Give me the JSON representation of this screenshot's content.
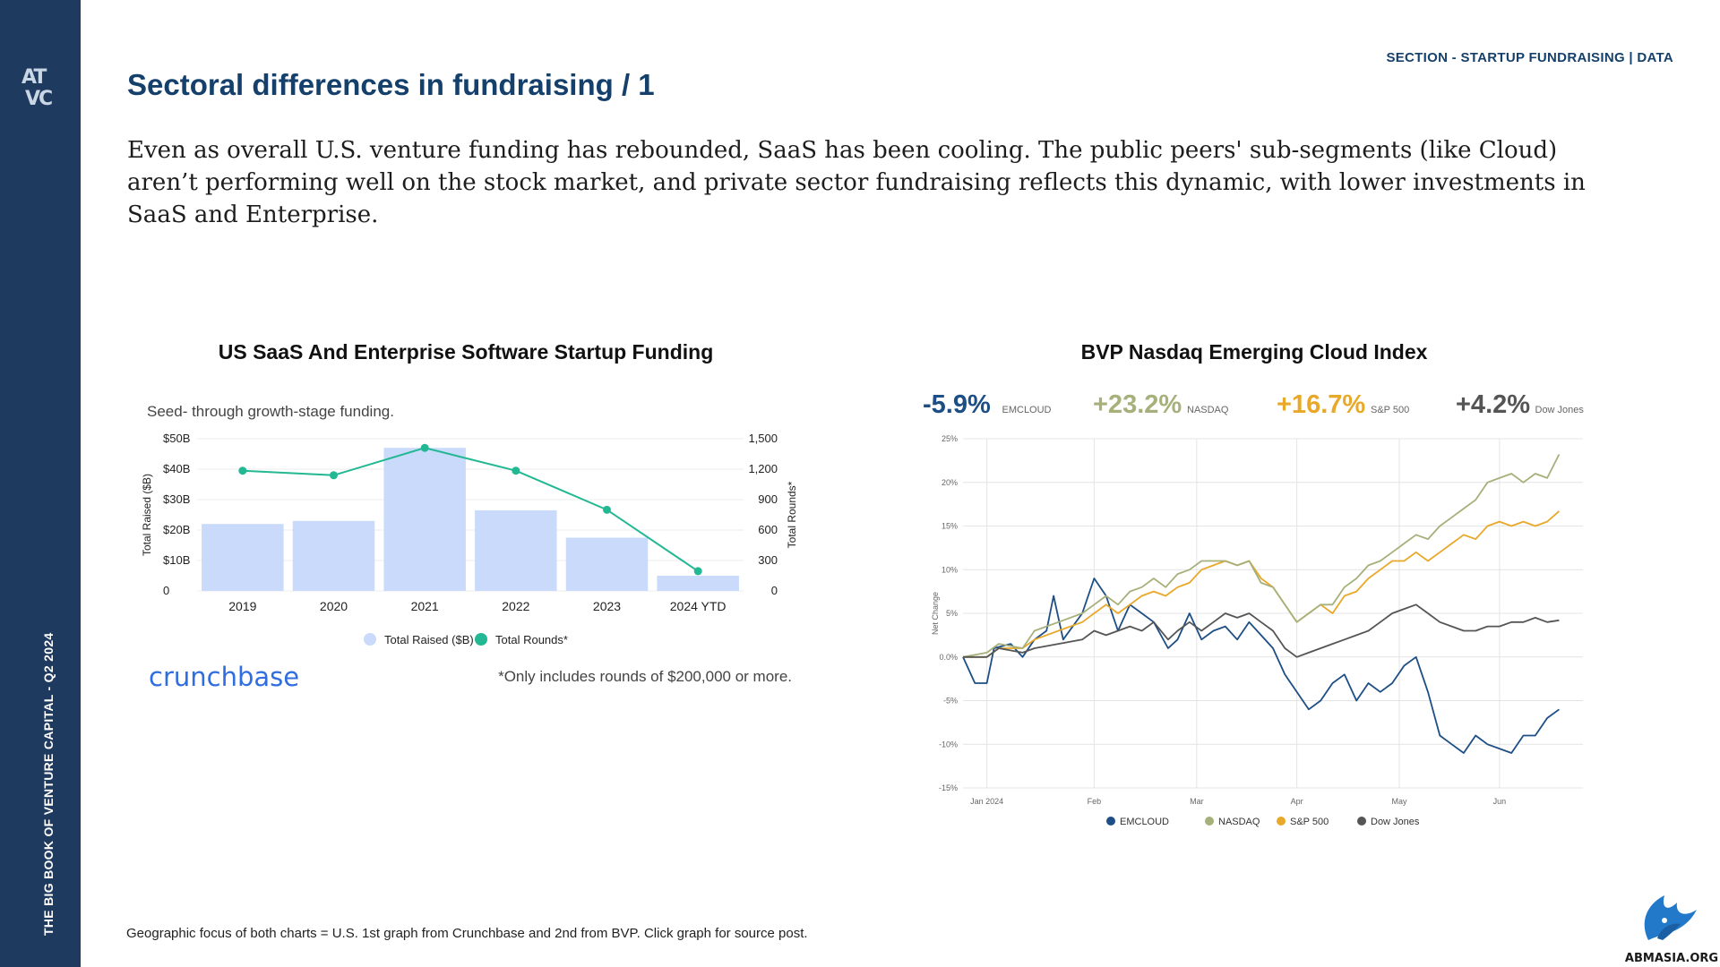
{
  "sidebar": {
    "logo_line1": "AT",
    "logo_line2": "VC",
    "vertical_text": "THE BIG BOOK OF VENTURE CAPITAL - Q2 2024",
    "logo_icon": "atvc-logo-icon"
  },
  "header": {
    "section_label": "SECTION - STARTUP FUNDRAISING | DATA",
    "title": "Sectoral differences in fundraising / 1"
  },
  "intro": "Even as overall U.S. venture funding has rebounded, SaaS has been cooling. The public peers' sub-segments (like Cloud) aren’t performing well on the stock market, and private sector fundraising reflects this dynamic, with lower investments in SaaS and Enterprise.",
  "footer": "Geographic focus of both charts = U.S. 1st graph from Crunchbase and 2nd from BVP. Click graph for source post.",
  "watermark": {
    "text": "ABMASIA.ORG",
    "icon": "eagle-icon"
  },
  "chart_data": [
    {
      "type": "bar",
      "title": "US SaaS And Enterprise Software Startup Funding",
      "subtitle": "Seed- through growth-stage funding.",
      "categories": [
        "2019",
        "2020",
        "2021",
        "2022",
        "2023",
        "2024 YTD"
      ],
      "series": [
        {
          "name": "Total Raised ($B)",
          "type": "bar",
          "axis": "left",
          "values": [
            22,
            23,
            47,
            26.5,
            17.5,
            5
          ],
          "color": "#c9dafb"
        },
        {
          "name": "Total Rounds*",
          "type": "line",
          "axis": "right",
          "values": [
            1185,
            1140,
            1410,
            1185,
            800,
            195
          ],
          "color": "#22b893"
        }
      ],
      "ylabel": "Total Raised ($B)",
      "ylabel_right": "Total Rounds*",
      "ylim": [
        0,
        50
      ],
      "ylim_right": [
        0,
        1500
      ],
      "yticks": [
        "0",
        "$10B",
        "$20B",
        "$30B",
        "$40B",
        "$50B"
      ],
      "yticks_right": [
        "0",
        "300",
        "600",
        "900",
        "1,200",
        "1,500"
      ],
      "legend_position": "bottom",
      "source_brand": "crunchbase",
      "note": "*Only includes rounds of $200,000 or more."
    },
    {
      "type": "line",
      "title": "BVP Nasdaq Emerging Cloud Index",
      "headline": [
        {
          "value": "-5.9%",
          "label": "EMCLOUD",
          "color": "#1d4e85"
        },
        {
          "value": "+23.2%",
          "label": "NASDAQ",
          "color": "#a6b07a"
        },
        {
          "value": "+16.7%",
          "label": "S&P 500",
          "color": "#e8a82a"
        },
        {
          "value": "+4.2%",
          "label": "Dow Jones",
          "color": "#555555"
        }
      ],
      "ylabel": "Net Change",
      "ylim": [
        -15,
        25
      ],
      "yticks": [
        "-15%",
        "-10%",
        "-5%",
        "0.0%",
        "5%",
        "10%",
        "15%",
        "20%",
        "25%"
      ],
      "x_range": [
        0,
        26
      ],
      "x_ticks": [
        {
          "label": "Jan 2024",
          "x": 1
        },
        {
          "label": "Feb",
          "x": 5.5
        },
        {
          "label": "Mar",
          "x": 9.8
        },
        {
          "label": "Apr",
          "x": 14
        },
        {
          "label": "May",
          "x": 18.3
        },
        {
          "label": "Jun",
          "x": 22.5
        }
      ],
      "legend_position": "bottom",
      "series": [
        {
          "name": "EMCLOUD",
          "color": "#1d4e85",
          "points": [
            [
              0,
              0
            ],
            [
              0.5,
              -3
            ],
            [
              1,
              -3
            ],
            [
              1.3,
              1
            ],
            [
              2,
              1.5
            ],
            [
              2.5,
              0
            ],
            [
              3,
              2
            ],
            [
              3.5,
              3
            ],
            [
              3.8,
              7
            ],
            [
              4.2,
              2
            ],
            [
              5,
              5
            ],
            [
              5.5,
              9
            ],
            [
              6,
              7
            ],
            [
              6.5,
              3
            ],
            [
              7,
              6
            ],
            [
              7.5,
              5
            ],
            [
              8,
              4
            ],
            [
              8.6,
              1
            ],
            [
              9,
              2
            ],
            [
              9.5,
              5
            ],
            [
              10,
              2
            ],
            [
              10.5,
              3
            ],
            [
              11,
              3.5
            ],
            [
              11.5,
              2
            ],
            [
              12,
              4
            ],
            [
              12.5,
              2.5
            ],
            [
              13,
              1
            ],
            [
              13.5,
              -2
            ],
            [
              14,
              -4
            ],
            [
              14.5,
              -6
            ],
            [
              15,
              -5
            ],
            [
              15.5,
              -3
            ],
            [
              16,
              -2
            ],
            [
              16.5,
              -5
            ],
            [
              17,
              -3
            ],
            [
              17.5,
              -4
            ],
            [
              18,
              -3
            ],
            [
              18.5,
              -1
            ],
            [
              19,
              0
            ],
            [
              19.5,
              -4
            ],
            [
              20,
              -9
            ],
            [
              20.5,
              -10
            ],
            [
              21,
              -11
            ],
            [
              21.5,
              -9
            ],
            [
              22,
              -10
            ],
            [
              22.5,
              -10.5
            ],
            [
              23,
              -11
            ],
            [
              23.5,
              -9
            ],
            [
              24,
              -9
            ],
            [
              24.5,
              -7
            ],
            [
              25,
              -6
            ]
          ]
        },
        {
          "name": "S&P 500",
          "color": "#e8a82a",
          "points": [
            [
              0,
              0
            ],
            [
              1,
              0
            ],
            [
              1.5,
              1
            ],
            [
              2.5,
              1
            ],
            [
              3,
              2
            ],
            [
              4,
              3
            ],
            [
              5,
              4
            ],
            [
              5.5,
              5
            ],
            [
              6,
              6
            ],
            [
              6.5,
              5
            ],
            [
              7,
              6
            ],
            [
              7.5,
              7
            ],
            [
              8,
              7.5
            ],
            [
              8.5,
              7
            ],
            [
              9,
              8
            ],
            [
              9.5,
              8.5
            ],
            [
              10,
              10
            ],
            [
              10.5,
              10.5
            ],
            [
              11,
              11
            ],
            [
              11.5,
              10.5
            ],
            [
              12,
              11
            ],
            [
              12.5,
              9
            ],
            [
              13,
              8
            ],
            [
              13.5,
              6
            ],
            [
              14,
              4
            ],
            [
              14.5,
              5
            ],
            [
              15,
              6
            ],
            [
              15.5,
              5
            ],
            [
              16,
              7
            ],
            [
              16.5,
              7.5
            ],
            [
              17,
              9
            ],
            [
              17.5,
              10
            ],
            [
              18,
              11
            ],
            [
              18.5,
              11
            ],
            [
              19,
              12
            ],
            [
              19.5,
              11
            ],
            [
              20,
              12
            ],
            [
              20.5,
              13
            ],
            [
              21,
              14
            ],
            [
              21.5,
              13.5
            ],
            [
              22,
              15
            ],
            [
              22.5,
              15.5
            ],
            [
              23,
              15
            ],
            [
              23.5,
              15.5
            ],
            [
              24,
              15
            ],
            [
              24.5,
              15.5
            ],
            [
              25,
              16.7
            ]
          ]
        },
        {
          "name": "NASDAQ",
          "color": "#a6b07a",
          "points": [
            [
              0,
              0
            ],
            [
              1,
              0.5
            ],
            [
              1.5,
              1.5
            ],
            [
              2.5,
              1
            ],
            [
              3,
              3
            ],
            [
              4,
              4
            ],
            [
              5,
              5
            ],
            [
              5.5,
              6
            ],
            [
              6,
              7
            ],
            [
              6.5,
              6
            ],
            [
              7,
              7.5
            ],
            [
              7.5,
              8
            ],
            [
              8,
              9
            ],
            [
              8.5,
              8
            ],
            [
              9,
              9.5
            ],
            [
              9.5,
              10
            ],
            [
              10,
              11
            ],
            [
              10.5,
              11
            ],
            [
              11,
              11
            ],
            [
              11.5,
              10.5
            ],
            [
              12,
              11
            ],
            [
              12.5,
              8.5
            ],
            [
              13,
              8
            ],
            [
              13.5,
              6
            ],
            [
              14,
              4
            ],
            [
              14.5,
              5
            ],
            [
              15,
              6
            ],
            [
              15.5,
              6
            ],
            [
              16,
              8
            ],
            [
              16.5,
              9
            ],
            [
              17,
              10.5
            ],
            [
              17.5,
              11
            ],
            [
              18,
              12
            ],
            [
              18.5,
              13
            ],
            [
              19,
              14
            ],
            [
              19.5,
              13.5
            ],
            [
              20,
              15
            ],
            [
              20.5,
              16
            ],
            [
              21,
              17
            ],
            [
              21.5,
              18
            ],
            [
              22,
              20
            ],
            [
              22.5,
              20.5
            ],
            [
              23,
              21
            ],
            [
              23.5,
              20
            ],
            [
              24,
              21
            ],
            [
              24.5,
              20.5
            ],
            [
              25,
              23.2
            ]
          ]
        },
        {
          "name": "Dow Jones",
          "color": "#555555",
          "points": [
            [
              0,
              0
            ],
            [
              1,
              0
            ],
            [
              1.5,
              1
            ],
            [
              2.5,
              0.5
            ],
            [
              3,
              1
            ],
            [
              4,
              1.5
            ],
            [
              5,
              2
            ],
            [
              5.5,
              3
            ],
            [
              6,
              2.5
            ],
            [
              6.5,
              3
            ],
            [
              7,
              3.5
            ],
            [
              7.5,
              3
            ],
            [
              8,
              4
            ],
            [
              8.6,
              2
            ],
            [
              9,
              3
            ],
            [
              9.5,
              4
            ],
            [
              10,
              3
            ],
            [
              10.5,
              4
            ],
            [
              11,
              5
            ],
            [
              11.5,
              4.5
            ],
            [
              12,
              5
            ],
            [
              12.5,
              4
            ],
            [
              13,
              3
            ],
            [
              13.5,
              1
            ],
            [
              14,
              0
            ],
            [
              14.5,
              0.5
            ],
            [
              15,
              1
            ],
            [
              15.5,
              1.5
            ],
            [
              16,
              2
            ],
            [
              16.5,
              2.5
            ],
            [
              17,
              3
            ],
            [
              17.5,
              4
            ],
            [
              18,
              5
            ],
            [
              18.5,
              5.5
            ],
            [
              19,
              6
            ],
            [
              19.5,
              5
            ],
            [
              20,
              4
            ],
            [
              20.5,
              3.5
            ],
            [
              21,
              3
            ],
            [
              21.5,
              3
            ],
            [
              22,
              3.5
            ],
            [
              22.5,
              3.5
            ],
            [
              23,
              4
            ],
            [
              23.5,
              4
            ],
            [
              24,
              4.5
            ],
            [
              24.5,
              4
            ],
            [
              25,
              4.2
            ]
          ]
        }
      ]
    }
  ]
}
